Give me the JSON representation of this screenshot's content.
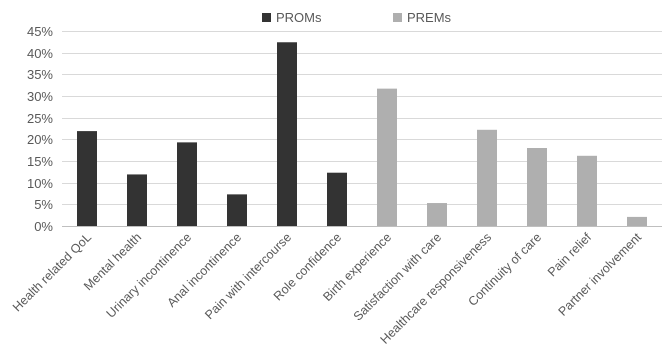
{
  "chart_data": {
    "type": "bar",
    "categories": [
      "Health related QoL",
      "Mental health",
      "Urinary incontinence",
      "Anal incontinence",
      "Pain with intercourse",
      "Role confidence",
      "Birth experience",
      "Satisfaction with care",
      "Healthcare responsiveness",
      "Continuity of care",
      "Pain relief",
      "Partner involvement"
    ],
    "series": [
      {
        "name": "PROMs",
        "color": "#333333",
        "values": [
          0.219,
          0.119,
          0.193,
          0.073,
          0.424,
          0.123,
          null,
          null,
          null,
          null,
          null,
          null
        ]
      },
      {
        "name": "PREMs",
        "color": "#afafaf",
        "values": [
          null,
          null,
          null,
          null,
          null,
          null,
          0.317,
          0.053,
          0.222,
          0.18,
          0.162,
          0.021
        ]
      }
    ],
    "ylim": [
      0,
      0.45
    ],
    "yticks": [
      {
        "value": 0,
        "label": "0%"
      },
      {
        "value": 0.05,
        "label": "5%"
      },
      {
        "value": 0.1,
        "label": "10%"
      },
      {
        "value": 0.15,
        "label": "15%"
      },
      {
        "value": 0.2,
        "label": "20%"
      },
      {
        "value": 0.25,
        "label": "25%"
      },
      {
        "value": 0.3,
        "label": "30%"
      },
      {
        "value": 0.35,
        "label": "35%"
      },
      {
        "value": 0.4,
        "label": "40%"
      },
      {
        "value": 0.45,
        "label": "45%"
      }
    ],
    "grid": true,
    "legend": "top-center",
    "title": "",
    "xlabel": "",
    "ylabel": ""
  }
}
